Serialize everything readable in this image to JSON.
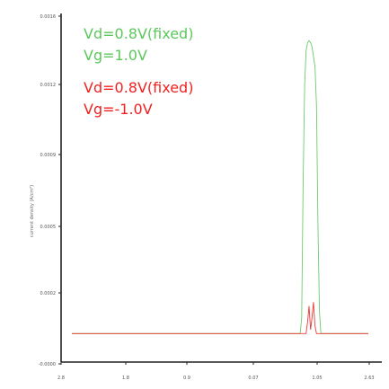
{
  "chart_data": {
    "type": "line",
    "title": "",
    "xlabel": "",
    "ylabel": "current density (A/cm²)",
    "x_tick_labels": [
      "2.8",
      "1.8",
      "0.9",
      "0.07",
      "1.05",
      "2.63"
    ],
    "y_tick_labels": [
      "-0.0000",
      "0.0002",
      "0.0005",
      "0.0009",
      "0.0012",
      "0.0016"
    ],
    "ylim": [
      -5e-05,
      0.0016
    ],
    "annotations": [
      {
        "line1": "Vd=0.8V(fixed)",
        "line2": "Vg=1.0V",
        "color": "#5cc75c"
      },
      {
        "line1": "Vd=0.8V(fixed)",
        "line2": "Vg=-1.0V",
        "color": "#ee2222"
      }
    ],
    "series": [
      {
        "color": "#5cc75c",
        "points": [
          [
            0.0,
            4e-05
          ],
          [
            0.5,
            4e-05
          ],
          [
            0.7,
            4e-05
          ],
          [
            0.77,
            4e-05
          ],
          [
            0.775,
            0.00012
          ],
          [
            0.78,
            0.0008
          ],
          [
            0.785,
            0.0013
          ],
          [
            0.79,
            0.00148
          ],
          [
            0.795,
            0.00152
          ],
          [
            0.8,
            0.00153
          ],
          [
            0.805,
            0.00152
          ],
          [
            0.81,
            0.0015
          ],
          [
            0.815,
            0.00145
          ],
          [
            0.82,
            0.0014
          ],
          [
            0.825,
            0.0012
          ],
          [
            0.83,
            0.0006
          ],
          [
            0.835,
            0.00015
          ],
          [
            0.84,
            4e-05
          ],
          [
            0.9,
            4e-05
          ],
          [
            1.0,
            4e-05
          ]
        ]
      },
      {
        "color": "#ee2222",
        "points": [
          [
            0.0,
            4e-05
          ],
          [
            0.5,
            4e-05
          ],
          [
            0.79,
            4e-05
          ],
          [
            0.795,
            0.0001
          ],
          [
            0.8,
            0.00018
          ],
          [
            0.805,
            6e-05
          ],
          [
            0.81,
            0.00012
          ],
          [
            0.815,
            0.0002
          ],
          [
            0.82,
            8e-05
          ],
          [
            0.825,
            4e-05
          ],
          [
            1.0,
            4e-05
          ]
        ]
      }
    ],
    "grid": false,
    "legend": "none"
  }
}
